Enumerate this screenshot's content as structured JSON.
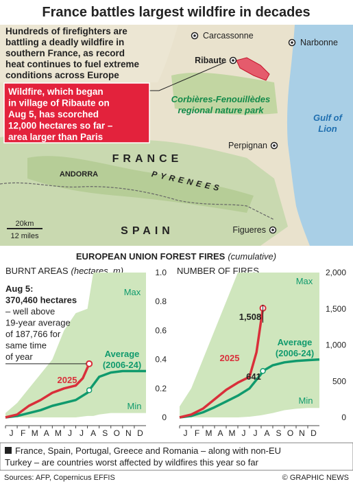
{
  "title": "France battles largest wildfire in decades",
  "map": {
    "intro": [
      "Hundreds of firefighters are",
      "battling a deadly wildfire in",
      "southern France, as record",
      "heat continues to fuel extreme",
      "conditions across Europe"
    ],
    "callout": [
      "Wildfire, which began",
      "in village of Ribaute on",
      "Aug 5, has scorched",
      "12,000 hectares so far –",
      "area larger than Paris"
    ],
    "places": [
      "Carcassonne",
      "Narbonne",
      "Ribaute",
      "Perpignan",
      "Figueres"
    ],
    "regions": [
      "ANDORRA",
      "FRANCE",
      "PYRENEES",
      "SPAIN"
    ],
    "park": [
      "Corbières-Fenouillèdes",
      "regional nature park"
    ],
    "sea": [
      "Gulf of",
      "Lion"
    ],
    "scale": [
      "20km",
      "12 miles"
    ]
  },
  "section_title": "EUROPEAN UNION FOREST FIRES",
  "section_subtitle": "(cumulative)",
  "chart_data": [
    {
      "type": "line",
      "title": "BURNT AREAS",
      "subtitle": "(hectares, m)",
      "categories": [
        "J",
        "F",
        "M",
        "A",
        "M",
        "J",
        "J",
        "A",
        "S",
        "O",
        "N",
        "D"
      ],
      "xlim": [
        0,
        12
      ],
      "ylim": [
        0,
        1
      ],
      "yticks": [
        0,
        0.2,
        0.4,
        0.6,
        0.8,
        {
          "value": 1,
          "label": "1.0"
        }
      ],
      "range": {
        "x": [
          0,
          1,
          2,
          3,
          4,
          5,
          6,
          7,
          7.5,
          8,
          9,
          10,
          11,
          12
        ],
        "max": [
          0.03,
          0.1,
          0.2,
          0.3,
          0.4,
          0.6,
          0.72,
          0.75,
          1,
          1,
          1,
          1,
          1,
          1
        ],
        "min": [
          0,
          0,
          0,
          0,
          0,
          0,
          0,
          0.01,
          0.01,
          0.02,
          0.03,
          0.03,
          0.03,
          0.03
        ],
        "color": "#cfe6bd"
      },
      "series": [
        {
          "name": "Average (2006-24)",
          "color": "#109a6d",
          "x": [
            0,
            1,
            2,
            3,
            4,
            5,
            6,
            7,
            7.15,
            8,
            9,
            10,
            11,
            12
          ],
          "values": [
            0,
            0.01,
            0.03,
            0.05,
            0.08,
            0.1,
            0.12,
            0.17,
            0.187766,
            0.28,
            0.31,
            0.32,
            0.32,
            0.32
          ]
        },
        {
          "name": "2025",
          "color": "#d92f3a",
          "x": [
            0,
            1,
            2,
            3,
            4,
            5,
            6,
            6.6,
            7.15
          ],
          "values": [
            0,
            0.02,
            0.08,
            0.12,
            0.17,
            0.2,
            0.22,
            0.27,
            0.37046
          ]
        }
      ],
      "annotations": [
        {
          "lines": [
            "Aug 5:",
            "370,460 hectares",
            "– well above",
            "19-year average",
            "of 187,766 for",
            "same time",
            "of year"
          ]
        },
        {
          "lines": [
            "Max"
          ]
        },
        {
          "lines": [
            "Min"
          ]
        }
      ]
    },
    {
      "type": "line",
      "title": "NUMBER OF FIRES",
      "categories": [
        "J",
        "F",
        "M",
        "A",
        "M",
        "J",
        "J",
        "A",
        "S",
        "O",
        "N",
        "D"
      ],
      "xlim": [
        0,
        12
      ],
      "ylim": [
        0,
        2000
      ],
      "yticks": [
        0,
        500,
        {
          "value": 1000,
          "label": "1,000"
        },
        {
          "value": 1500,
          "label": "1,500"
        },
        {
          "value": 2000,
          "label": "2,000"
        }
      ],
      "range": {
        "x": [
          0,
          1,
          2,
          3,
          4,
          5,
          6,
          7,
          8,
          9,
          10,
          11,
          12
        ],
        "max": [
          150,
          400,
          800,
          1200,
          1600,
          2000,
          2000,
          2000,
          2000,
          2000,
          2000,
          2000,
          2000
        ],
        "min": [
          0,
          0,
          0,
          0,
          0,
          0,
          10,
          30,
          60,
          100,
          120,
          130,
          130
        ],
        "color": "#cfe6bd"
      },
      "series": [
        {
          "name": "Average (2006-24)",
          "color": "#109a6d",
          "x": [
            0,
            1,
            2,
            3,
            4,
            5,
            6,
            7,
            7.15,
            8,
            9,
            10,
            11,
            12
          ],
          "values": [
            0,
            20,
            70,
            140,
            220,
            300,
            400,
            600,
            641,
            720,
            760,
            780,
            790,
            800
          ]
        },
        {
          "name": "2025",
          "color": "#d92f3a",
          "x": [
            0,
            1,
            2,
            3,
            4,
            5,
            6,
            6.6,
            7.15
          ],
          "values": [
            0,
            40,
            120,
            250,
            380,
            480,
            560,
            900,
            1508
          ]
        }
      ],
      "annotations": [
        {
          "lines": [
            "1,508"
          ]
        },
        {
          "lines": [
            "641"
          ]
        },
        {
          "lines": [
            "Max"
          ]
        },
        {
          "lines": [
            "Min"
          ]
        }
      ]
    }
  ],
  "footnote": [
    "France, Spain, Portugal, Greece and Romania – along with non-EU",
    "Turkey – are countries worst affected by wildfires this year so far"
  ],
  "source": "Sources: AFP, Copernicus EFFIS",
  "credit": "© GRAPHIC NEWS"
}
